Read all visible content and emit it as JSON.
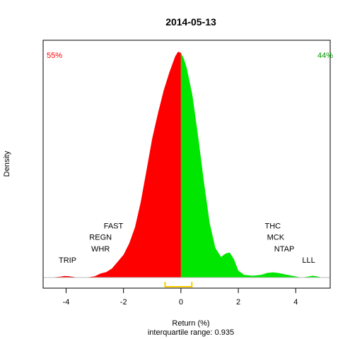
{
  "chart_data": {
    "type": "area",
    "title": "2014-05-13",
    "xlabel": "Return (%)",
    "ylabel": "Density",
    "subtitle": "interquartile range: 0.935",
    "xlim": [
      -4.8,
      5.2
    ],
    "ylim": [
      0,
      1.0
    ],
    "x_ticks": [
      {
        "value": -4,
        "label": "-4"
      },
      {
        "value": -2,
        "label": "-2"
      },
      {
        "value": 0,
        "label": "0"
      },
      {
        "value": 2,
        "label": "2"
      },
      {
        "value": 4,
        "label": "4"
      }
    ],
    "split_at": 0,
    "negative_share": "55%",
    "positive_share": "44%",
    "negative_color": "#ff0000",
    "positive_color": "#00e600",
    "iqr_color": "#ffcc00",
    "iqr": [
      -0.55,
      0.38
    ],
    "series": [
      {
        "x": [
          -4.55,
          -4.2,
          -4.05,
          -3.9,
          -3.75,
          -3.6,
          -3.2,
          -3.0,
          -2.8,
          -2.6,
          -2.4,
          -2.2,
          -2.0,
          -1.8,
          -1.6,
          -1.4,
          -1.2,
          -1.0,
          -0.8,
          -0.6,
          -0.4,
          -0.2,
          -0.1,
          0.0,
          0.1,
          0.2,
          0.4,
          0.6,
          0.8,
          1.0,
          1.2,
          1.4,
          1.55,
          1.7,
          1.85,
          2.0,
          2.2,
          2.5,
          2.8,
          3.0,
          3.2,
          3.4,
          3.7,
          4.0,
          4.2,
          4.4,
          4.6,
          4.8,
          4.9
        ],
        "y": [
          0.0,
          0.004,
          0.007,
          0.006,
          0.003,
          0.0,
          0.002,
          0.006,
          0.018,
          0.024,
          0.04,
          0.07,
          0.1,
          0.15,
          0.22,
          0.33,
          0.47,
          0.61,
          0.72,
          0.82,
          0.9,
          0.97,
          0.99,
          0.985,
          0.96,
          0.92,
          0.8,
          0.62,
          0.42,
          0.24,
          0.13,
          0.09,
          0.105,
          0.11,
          0.08,
          0.03,
          0.012,
          0.008,
          0.012,
          0.02,
          0.023,
          0.02,
          0.012,
          0.005,
          0.0,
          0.004,
          0.008,
          0.004,
          0.0
        ]
      }
    ],
    "annotations": [
      {
        "text": "TRIP",
        "x": -3.95,
        "y": 0.065
      },
      {
        "text": "WHR",
        "x": -2.8,
        "y": 0.115
      },
      {
        "text": "REGN",
        "x": -2.8,
        "y": 0.165
      },
      {
        "text": "FAST",
        "x": -2.35,
        "y": 0.215
      },
      {
        "text": "LLL",
        "x": 4.45,
        "y": 0.065
      },
      {
        "text": "NTAP",
        "x": 3.6,
        "y": 0.115
      },
      {
        "text": "MCK",
        "x": 3.3,
        "y": 0.165
      },
      {
        "text": "THC",
        "x": 3.2,
        "y": 0.215
      }
    ]
  }
}
